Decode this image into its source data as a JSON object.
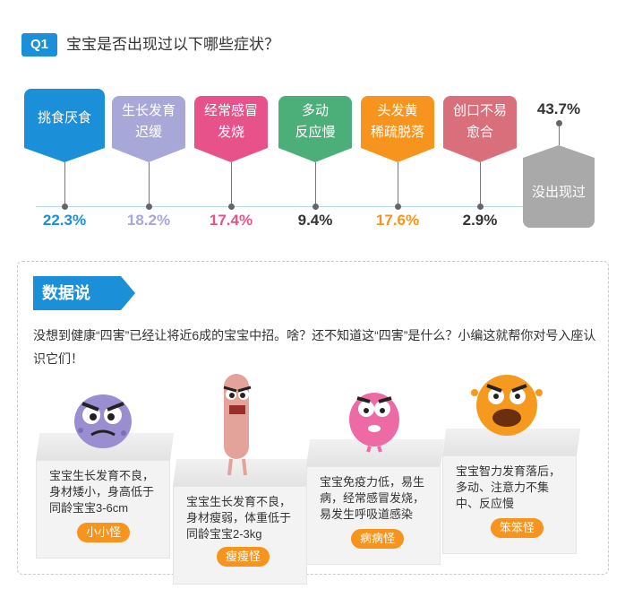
{
  "question": {
    "badge": "Q1",
    "text": "宝宝是否出现过以下哪些症状？"
  },
  "chart_data": {
    "type": "bar",
    "categories": [
      "挑食厌食",
      "生长发育迟缓",
      "经常感冒发烧",
      "多动反应慢",
      "头发黄稀疏脱落",
      "创口不易愈合",
      "没出现过"
    ],
    "label_lines": [
      [
        "挑食厌食"
      ],
      [
        "生长发育",
        "迟缓"
      ],
      [
        "经常感冒",
        "发烧"
      ],
      [
        "多动",
        "反应慢"
      ],
      [
        "头发黄",
        "稀疏脱落"
      ],
      [
        "创口不易",
        "愈合"
      ],
      [
        "没出现过"
      ]
    ],
    "values": [
      22.3,
      18.2,
      17.4,
      9.4,
      17.6,
      2.9,
      43.7
    ],
    "value_labels": [
      "22.3%",
      "18.2%",
      "17.4%",
      "9.4%",
      "17.6%",
      "2.9%",
      "43.7%"
    ],
    "colors": [
      "#1b8fd8",
      "#a8a8d8",
      "#e8528a",
      "#4caf7a",
      "#f7941d",
      "#d86f7b",
      "#a9a9a9"
    ],
    "label_colors": [
      "#1b8fd8",
      "#a8a8d8",
      "#e8528a",
      "#333333",
      "#f7941d",
      "#333333",
      "#333333"
    ]
  },
  "section": {
    "title": "数据说",
    "intro": "没想到健康“四害”已经让将近6成的宝宝中招。啥？还不知道这“四害”是什么？小编这就帮你对号入座认识它们！"
  },
  "monsters": [
    {
      "desc": "宝宝生长发育不良，身材矮小，身高低于同龄宝宝3-6cm",
      "name": "小小怪",
      "color": "#9a8ed0",
      "icon": "small-monster"
    },
    {
      "desc": "宝宝生长发育不良，身材瘦弱，体重低于同龄宝宝2-3kg",
      "name": "瘦瘦怪",
      "color": "#e3a29a",
      "icon": "thin-monster"
    },
    {
      "desc": "宝宝免疫力低，易生病，经常感冒发烧，易发生呼吸道感染",
      "name": "病病怪",
      "color": "#ee6aa5",
      "icon": "sick-monster"
    },
    {
      "desc": "宝宝智力发育落后，多动、注意力不集中、反应慢",
      "name": "笨笨怪",
      "color": "#f59a1e",
      "icon": "dumb-monster"
    }
  ]
}
